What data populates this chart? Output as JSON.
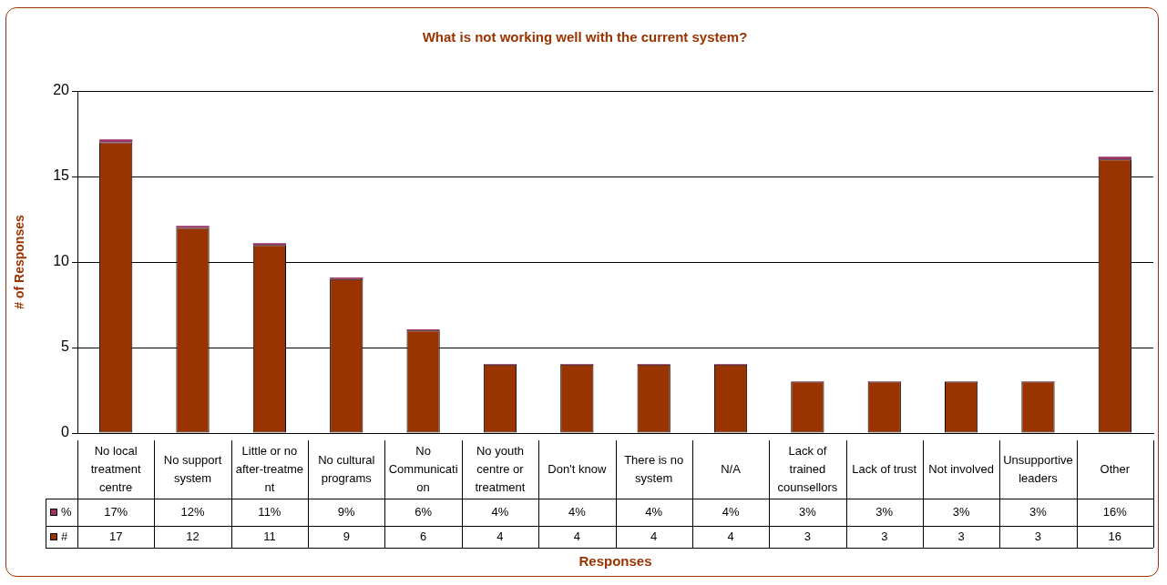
{
  "chart_data": {
    "type": "bar",
    "title": "What is not working well with the current system?",
    "xlabel": "Responses",
    "ylabel": "# of Responses",
    "categories": [
      "No local treatment centre",
      "No support system",
      "Little or no after-treatment",
      "No cultural programs",
      "No Communication",
      "No youth centre or treatment",
      "Don't know",
      "There is no system",
      "N/A",
      "Lack of trained counsellors",
      "Lack of trust",
      "Not involved",
      "Unsupportive leaders",
      "Other"
    ],
    "stacked": true,
    "legend": "bottom",
    "series": [
      {
        "name": "#",
        "color": "#993300",
        "values": [
          17,
          12,
          11,
          9,
          6,
          4,
          4,
          4,
          4,
          3,
          3,
          3,
          3,
          16
        ],
        "value_labels": [
          "17",
          "12",
          "11",
          "9",
          "6",
          "4",
          "4",
          "4",
          "4",
          "3",
          "3",
          "3",
          "3",
          "16"
        ]
      },
      {
        "name": "%",
        "color": "#993366",
        "values": [
          0.17,
          0.12,
          0.11,
          0.09,
          0.06,
          0.04,
          0.04,
          0.04,
          0.04,
          0.03,
          0.03,
          0.03,
          0.03,
          0.16
        ],
        "value_labels": [
          "17%",
          "12%",
          "11%",
          "9%",
          "6%",
          "4%",
          "4%",
          "4%",
          "4%",
          "3%",
          "3%",
          "3%",
          "3%",
          "16%"
        ]
      }
    ],
    "ylim": [
      0,
      20
    ],
    "yticks": [
      0,
      5,
      10,
      15,
      20
    ],
    "grid": "y"
  }
}
